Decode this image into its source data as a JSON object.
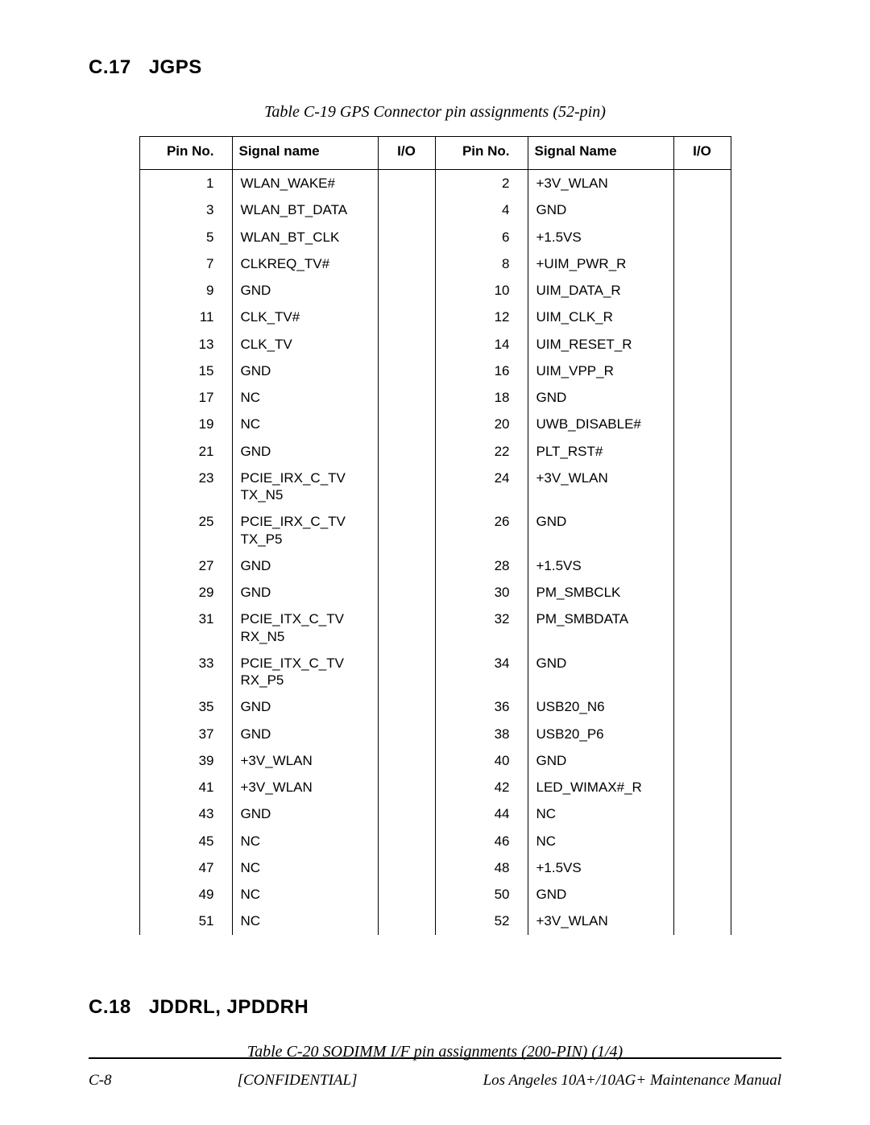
{
  "section1": {
    "number": "C.17",
    "title": "JGPS",
    "caption_prefix": "Table C-19",
    "caption_gps": "GPS",
    "caption_rest": "Connector pin assignments (52-pin)",
    "headers": {
      "pin_l": "Pin No.",
      "sig_l": "Signal name",
      "io_l": "I/O",
      "pin_r": "Pin No.",
      "sig_r": "Signal Name",
      "io_r": "I/O"
    },
    "rows": [
      {
        "pl": "1",
        "sl": "WLAN_WAKE#",
        "il": "",
        "pr": "2",
        "sr": "+3V_WLAN",
        "ir": ""
      },
      {
        "pl": "3",
        "sl": "WLAN_BT_DATA",
        "il": "",
        "pr": "4",
        "sr": "GND",
        "ir": ""
      },
      {
        "pl": "5",
        "sl": "WLAN_BT_CLK",
        "il": "",
        "pr": "6",
        "sr": "+1.5VS",
        "ir": ""
      },
      {
        "pl": "7",
        "sl": "CLKREQ_TV#",
        "il": "",
        "pr": "8",
        "sr": "+UIM_PWR_R",
        "ir": ""
      },
      {
        "pl": "9",
        "sl": "GND",
        "il": "",
        "pr": "10",
        "sr": "UIM_DATA_R",
        "ir": ""
      },
      {
        "pl": "11",
        "sl": "CLK_TV#",
        "il": "",
        "pr": "12",
        "sr": "UIM_CLK_R",
        "ir": ""
      },
      {
        "pl": "13",
        "sl": "CLK_TV",
        "il": "",
        "pr": "14",
        "sr": "UIM_RESET_R",
        "ir": ""
      },
      {
        "pl": "15",
        "sl": "GND",
        "il": "",
        "pr": "16",
        "sr": "UIM_VPP_R",
        "ir": ""
      },
      {
        "pl": "17",
        "sl": "NC",
        "il": "",
        "pr": "18",
        "sr": "GND",
        "ir": ""
      },
      {
        "pl": "19",
        "sl": "NC",
        "il": "",
        "pr": "20",
        "sr": "UWB_DISABLE#",
        "ir": ""
      },
      {
        "pl": "21",
        "sl": "GND",
        "il": "",
        "pr": "22",
        "sr": "PLT_RST#",
        "ir": ""
      },
      {
        "pl": "23",
        "sl": "PCIE_IRX_C_TV\nTX_N5",
        "il": "",
        "pr": "24",
        "sr": "+3V_WLAN",
        "ir": ""
      },
      {
        "pl": "25",
        "sl": "PCIE_IRX_C_TV\nTX_P5",
        "il": "",
        "pr": "26",
        "sr": "GND",
        "ir": ""
      },
      {
        "pl": "27",
        "sl": "GND",
        "il": "",
        "pr": "28",
        "sr": "+1.5VS",
        "ir": ""
      },
      {
        "pl": "29",
        "sl": "GND",
        "il": "",
        "pr": "30",
        "sr": "PM_SMBCLK",
        "ir": ""
      },
      {
        "pl": "31",
        "sl": "PCIE_ITX_C_TV\nRX_N5",
        "il": "",
        "pr": "32",
        "sr": "PM_SMBDATA",
        "ir": ""
      },
      {
        "pl": "33",
        "sl": "PCIE_ITX_C_TV\nRX_P5",
        "il": "",
        "pr": "34",
        "sr": "GND",
        "ir": ""
      },
      {
        "pl": "35",
        "sl": "GND",
        "il": "",
        "pr": "36",
        "sr": "USB20_N6",
        "ir": ""
      },
      {
        "pl": "37",
        "sl": "GND",
        "il": "",
        "pr": "38",
        "sr": "USB20_P6",
        "ir": ""
      },
      {
        "pl": "39",
        "sl": "+3V_WLAN",
        "il": "",
        "pr": "40",
        "sr": "GND",
        "ir": ""
      },
      {
        "pl": "41",
        "sl": "+3V_WLAN",
        "il": "",
        "pr": "42",
        "sr": "LED_WIMAX#_R",
        "ir": ""
      },
      {
        "pl": "43",
        "sl": "GND",
        "il": "",
        "pr": "44",
        "sr": "NC",
        "ir": ""
      },
      {
        "pl": "45",
        "sl": "NC",
        "il": "",
        "pr": "46",
        "sr": "NC",
        "ir": ""
      },
      {
        "pl": "47",
        "sl": "NC",
        "il": "",
        "pr": "48",
        "sr": "+1.5VS",
        "ir": ""
      },
      {
        "pl": "49",
        "sl": "NC",
        "il": "",
        "pr": "50",
        "sr": "GND",
        "ir": ""
      },
      {
        "pl": "51",
        "sl": "NC",
        "il": "",
        "pr": "52",
        "sr": "+3V_WLAN",
        "ir": ""
      }
    ]
  },
  "section2": {
    "number": "C.18",
    "title": "JDDRL, JPDDRH",
    "caption": "Table C-20  SODIMM I/F pin assignments (200-PIN) (1/4)"
  },
  "footer": {
    "page": "C-8",
    "confidential": "[CONFIDENTIAL]",
    "manual": "Los Angeles 10A+/10AG+ Maintenance Manual"
  },
  "style": {
    "page_bg": "#ffffff",
    "text_color": "#000000",
    "rule_color": "#000000",
    "heading_fontsize": 24,
    "caption_fontsize": 20,
    "table_fontsize": 17,
    "footer_fontsize": 19
  }
}
